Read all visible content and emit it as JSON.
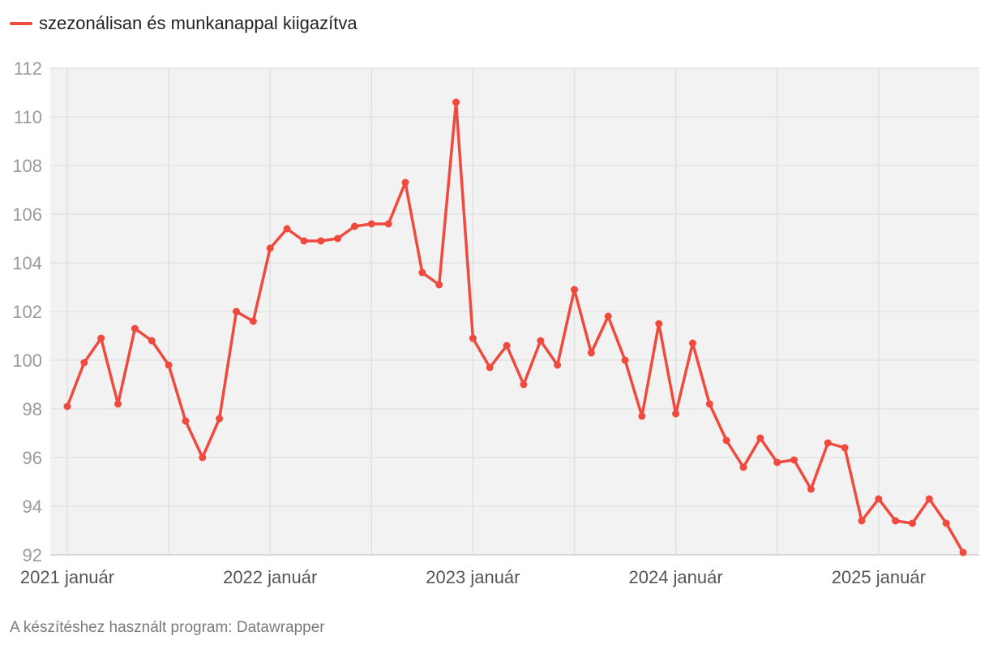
{
  "legend": {
    "label": "szezonálisan és munkanappal kiigazítva"
  },
  "footer": {
    "text": "A készítéshez használt program: Datawrapper"
  },
  "colors": {
    "series": "#f0493e",
    "plot_background": "#f2f2f2",
    "grid": "#e0e0e0"
  },
  "chart_data": {
    "type": "line",
    "x_start": "2021-01",
    "x_interval": "month",
    "x_tick_labels": [
      "2021 január",
      "2022 január",
      "2023 január",
      "2024 január",
      "2025 január"
    ],
    "y_tick_labels": [
      "92",
      "94",
      "96",
      "98",
      "100",
      "102",
      "104",
      "106",
      "108",
      "110",
      "112"
    ],
    "ylim": [
      92,
      112
    ],
    "grid": true,
    "series": [
      {
        "name": "szezonálisan és munkanappal kiigazítva",
        "values": [
          98.1,
          99.9,
          100.9,
          98.2,
          101.3,
          100.8,
          99.8,
          97.5,
          96.0,
          97.6,
          102.0,
          101.6,
          104.6,
          105.4,
          104.9,
          104.9,
          105.0,
          105.5,
          105.6,
          105.6,
          107.3,
          103.6,
          103.1,
          110.6,
          100.9,
          99.7,
          100.6,
          99.0,
          100.8,
          99.8,
          102.9,
          100.3,
          101.8,
          100.0,
          97.7,
          101.5,
          97.8,
          100.7,
          98.2,
          96.7,
          95.6,
          96.8,
          95.8,
          95.9,
          94.7,
          96.6,
          96.4,
          93.4,
          94.3,
          93.4,
          93.3,
          94.3,
          93.3,
          92.1
        ]
      }
    ]
  }
}
